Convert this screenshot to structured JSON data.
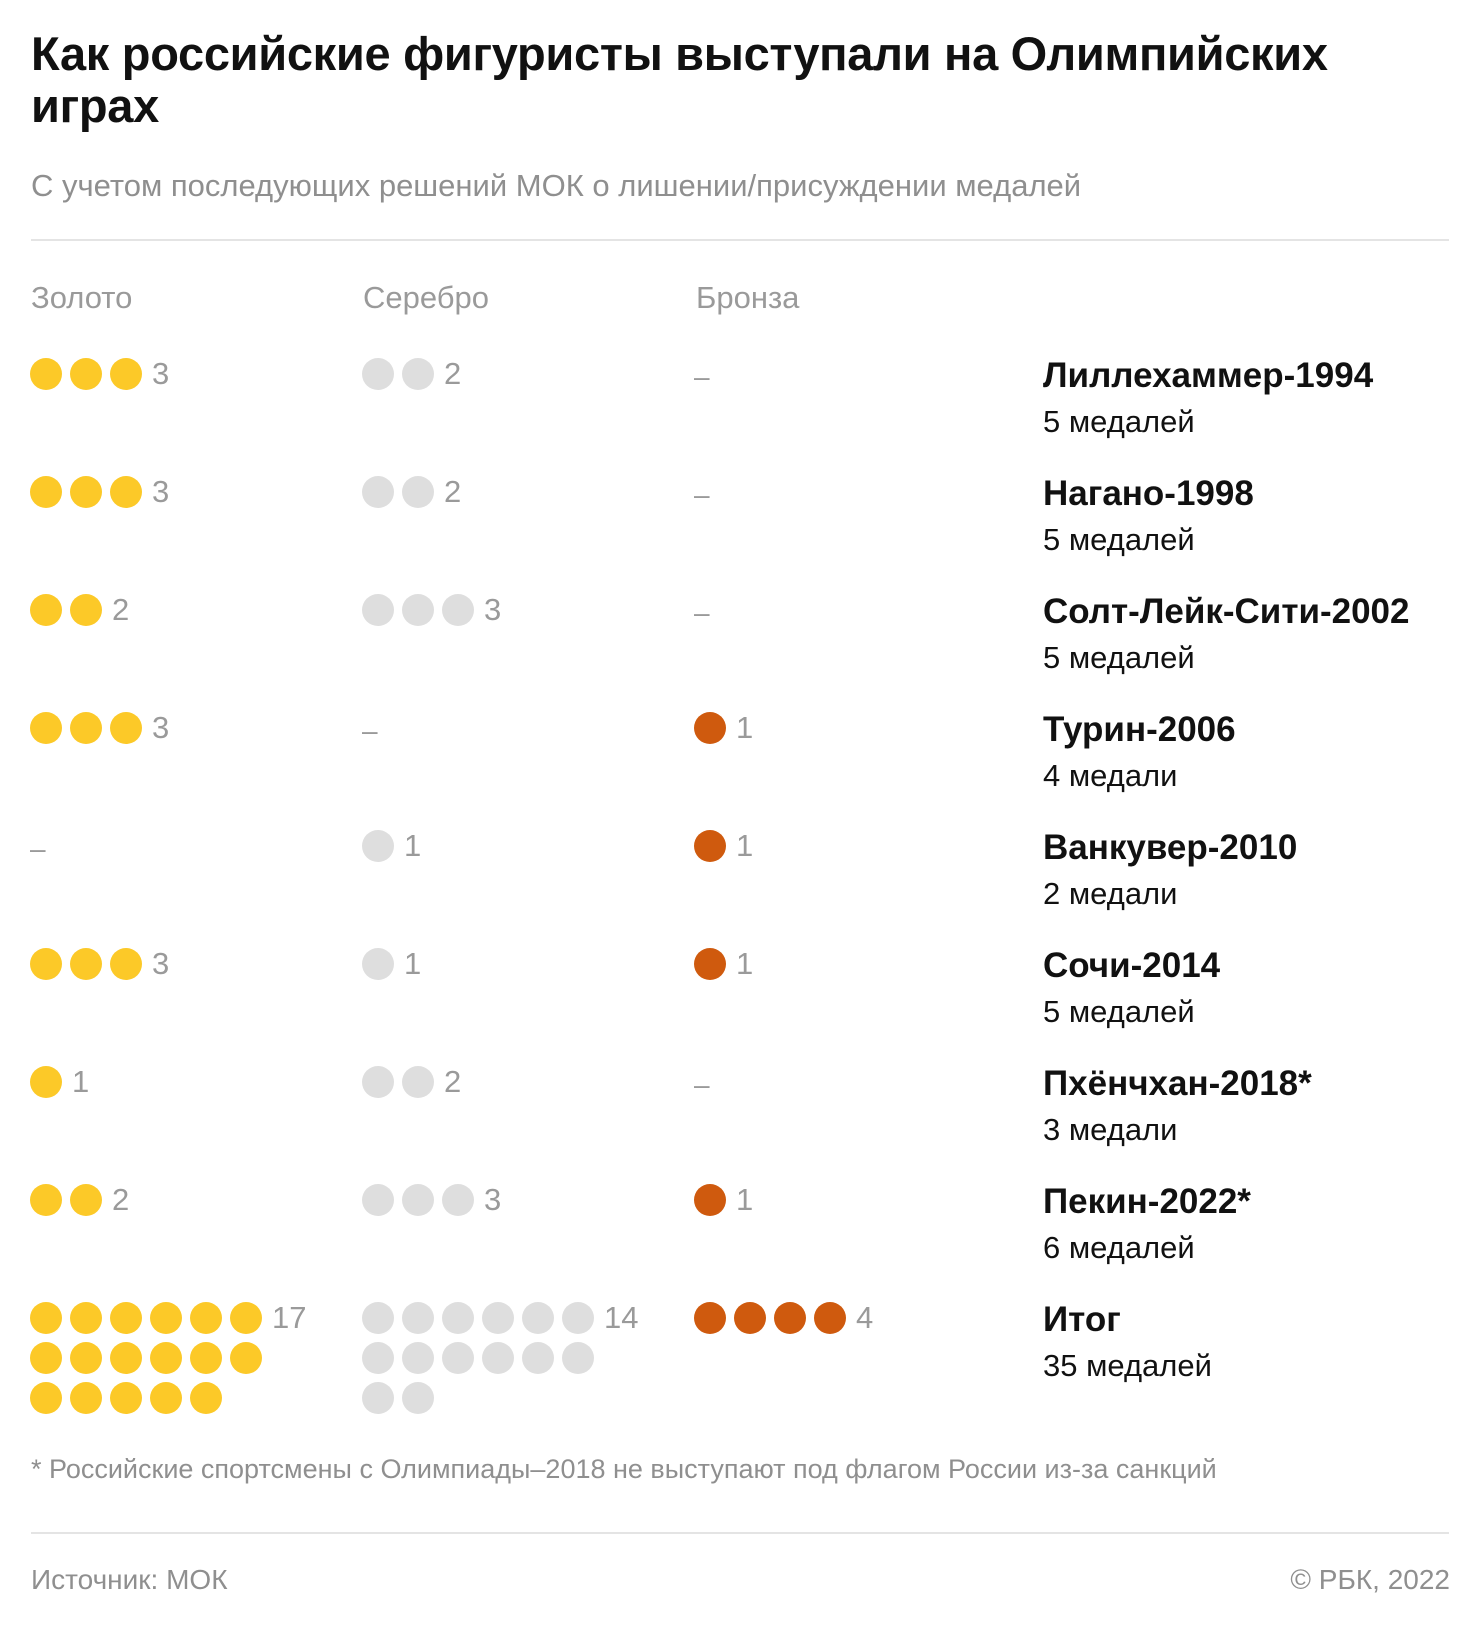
{
  "title": "Как российские фигуристы выступали на Олимпийских играх",
  "subtitle": "С учетом последующих решений МОК о лишении/присуждении медалей",
  "columns": {
    "gold": "Золото",
    "silver": "Серебро",
    "bronze": "Бронза"
  },
  "empty_mark": "–",
  "colors": {
    "gold": "#fcc928",
    "silver": "#dedede",
    "bronze": "#cf5a0e"
  },
  "chart_data": {
    "type": "table",
    "columns": [
      "Золото",
      "Серебро",
      "Бронза"
    ],
    "rows": [
      {
        "games": "Лиллехаммер-1994",
        "total_label": "5 медалей",
        "gold": 3,
        "silver": 2,
        "bronze": 0
      },
      {
        "games": "Нагано-1998",
        "total_label": "5 медалей",
        "gold": 3,
        "silver": 2,
        "bronze": 0
      },
      {
        "games": "Солт-Лейк-Сити-2002",
        "total_label": "5 медалей",
        "gold": 2,
        "silver": 3,
        "bronze": 0
      },
      {
        "games": "Турин-2006",
        "total_label": "4 медали",
        "gold": 3,
        "silver": 0,
        "bronze": 1
      },
      {
        "games": "Ванкувер-2010",
        "total_label": "2 медали",
        "gold": 0,
        "silver": 1,
        "bronze": 1
      },
      {
        "games": "Сочи-2014",
        "total_label": "5 медалей",
        "gold": 3,
        "silver": 1,
        "bronze": 1
      },
      {
        "games": "Пхёнчхан-2018*",
        "total_label": "3 медали",
        "gold": 1,
        "silver": 2,
        "bronze": 0
      },
      {
        "games": "Пекин-2022*",
        "total_label": "6 медалей",
        "gold": 2,
        "silver": 3,
        "bronze": 1
      }
    ],
    "total": {
      "games": "Итог",
      "total_label": "35 медалей",
      "gold": 17,
      "silver": 14,
      "bronze": 4
    }
  },
  "footnote": "* Российские спортсмены с Олимпиады–2018 не выступают под флагом России из-за санкций",
  "source": "Источник: МОК",
  "copyright": "© РБК, 2022"
}
